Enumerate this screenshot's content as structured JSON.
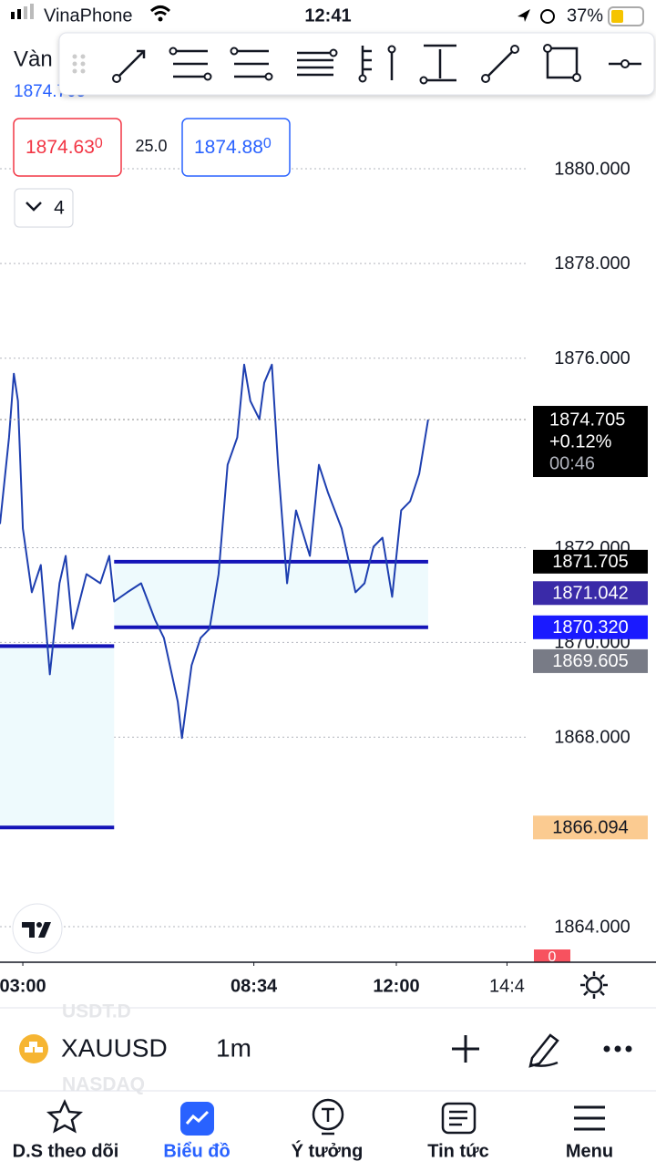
{
  "status_bar": {
    "carrier": "VinaPhone",
    "time": "12:41",
    "battery": "37%"
  },
  "symbol_header": {
    "name": "Vàn",
    "price": "1874.705"
  },
  "quote": {
    "bid": "1874.63",
    "bid_suffix": "0",
    "spread": "25.0",
    "ask": "1874.88",
    "ask_suffix": "0",
    "lots": "4"
  },
  "chart_data": {
    "type": "line",
    "color": "#1e3fb0",
    "x": [
      147,
      160,
      167,
      173,
      180,
      193,
      206,
      219,
      233,
      242,
      252,
      272,
      292,
      305,
      312,
      331,
      351,
      371,
      384,
      404,
      410,
      424,
      437,
      450,
      463,
      476,
      490,
      500,
      509,
      522,
      529,
      540,
      549,
      562,
      575,
      595,
      608,
      621,
      641,
      661,
      674,
      687,
      700,
      714,
      727,
      740,
      753,
      766
    ],
    "values": [
      1872.5,
      1874.327,
      1875.673,
      1875.096,
      1872.404,
      1871.058,
      1871.635,
      1869.327,
      1871.25,
      1871.827,
      1870.288,
      1871.442,
      1871.25,
      1871.827,
      1870.865,
      1871.058,
      1871.25,
      1870.481,
      1870.096,
      1868.75,
      1867.981,
      1869.519,
      1870.096,
      1870.288,
      1871.442,
      1873.75,
      1874.327,
      1875.865,
      1875.096,
      1874.712,
      1875.481,
      1875.865,
      1873.75,
      1871.25,
      1872.788,
      1871.827,
      1873.75,
      1873.173,
      1872.404,
      1871.058,
      1871.25,
      1872.019,
      1872.212,
      1870.962,
      1872.788,
      1872.981,
      1873.558,
      1874.705
    ],
    "xlim": [
      147,
      911
    ],
    "xticks": [
      {
        "value": 180,
        "label": "03:00"
      },
      {
        "value": 514,
        "label": "08:34"
      },
      {
        "value": 720,
        "label": "12:00"
      },
      {
        "value": 880,
        "label": "14:4"
      }
    ],
    "ylim": [
      1863.25,
      1881.54
    ],
    "yticks": [
      {
        "value": 1864,
        "label": "1864.000"
      },
      {
        "value": 1868,
        "label": "1868.000"
      },
      {
        "value": 1870,
        "label": "1870.000"
      },
      {
        "value": 1872,
        "label": "1872.000"
      },
      {
        "value": 1876,
        "label": "1876.000"
      },
      {
        "value": 1878,
        "label": "1878.000"
      },
      {
        "value": 1880,
        "label": "1880.000"
      }
    ],
    "zones": [
      {
        "top": 1871.705,
        "bottom": 1870.32,
        "x0": 312,
        "x1": 766
      },
      {
        "top": 1869.923,
        "bottom": 1866.094,
        "x0": 147,
        "x1": 312
      }
    ],
    "price_tags": [
      {
        "value": 1874.705,
        "label": "1874.705",
        "change": "+0.12%",
        "countdown": "00:46",
        "color": "#000000",
        "text_color": "#ffffff"
      },
      {
        "value": 1871.705,
        "label": "1871.705",
        "color": "#000000",
        "text_color": "#ffffff"
      },
      {
        "value": 1871.042,
        "label": "1871.042",
        "color": "#3a2aa8",
        "text_color": "#ffffff"
      },
      {
        "value": 1870.32,
        "label": "1870.320",
        "color": "#1a1aff",
        "text_color": "#ffffff"
      },
      {
        "value": 1869.605,
        "label": "1869.605",
        "color": "#787b86",
        "text_color": "#ffffff"
      },
      {
        "value": 1866.094,
        "label": "1866.094",
        "color": "#fbcb91",
        "text_color": "#131722"
      }
    ],
    "volume_tag": "0"
  },
  "bottom_bar": {
    "ghost_top": "USDT.D",
    "ghost_bottom": "NASDAQ",
    "symbol": "XAUUSD",
    "interval": "1m"
  },
  "nav": [
    "D.S theo dõi",
    "Biểu đồ",
    "Ý tưởng",
    "Tin tức",
    "Menu"
  ]
}
